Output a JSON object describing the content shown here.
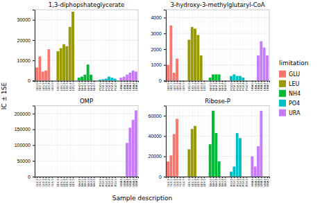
{
  "chart_data": [
    {
      "type": "bar",
      "title": "1,3-diphopshateglycerate",
      "categories": [
        "GLU\n0",
        "GLU\n1",
        "GLU\n2",
        "GLU\n3",
        "GLU\n4",
        "GLU\n5",
        "LEU\n0",
        "LEU\n1",
        "LEU\n2",
        "LEU\n3",
        "LEU\n4",
        "LEU\n5",
        "NH4\n0",
        "NH4\n1",
        "NH4\n2",
        "NH4\n3",
        "NH4\n4",
        "NH4\n5",
        "PO4\n0",
        "PO4\n1",
        "PO4\n2",
        "PO4\n3",
        "PO4\n4",
        "PO4\n5",
        "URA\n0",
        "URA\n1",
        "URA\n2",
        "URA\n3",
        "URA\n4",
        "URA\n5"
      ],
      "series": [
        {
          "name": "GLU",
          "color": "#F8766D",
          "values": [
            6500,
            12000,
            4500,
            5000,
            15500,
            0,
            null,
            null,
            null,
            null,
            null,
            null,
            null,
            null,
            null,
            null,
            null,
            null,
            null,
            null,
            null,
            null,
            null,
            null,
            null,
            null,
            null,
            null,
            null,
            null
          ]
        },
        {
          "name": "LEU",
          "color": "#999900",
          "values": [
            null,
            null,
            null,
            null,
            null,
            null,
            14500,
            16000,
            18000,
            17000,
            26500,
            34000,
            null,
            null,
            null,
            null,
            null,
            null,
            null,
            null,
            null,
            null,
            null,
            null,
            null,
            null,
            null,
            null,
            null,
            null
          ]
        },
        {
          "name": "NH4",
          "color": "#00BA38",
          "values": [
            null,
            null,
            null,
            null,
            null,
            null,
            null,
            null,
            null,
            null,
            null,
            null,
            1500,
            2000,
            3000,
            8000,
            3000,
            0,
            null,
            null,
            null,
            null,
            null,
            null,
            null,
            null,
            null,
            null,
            null,
            null
          ]
        },
        {
          "name": "PO4",
          "color": "#00BFC4",
          "values": [
            null,
            null,
            null,
            null,
            null,
            null,
            null,
            null,
            null,
            null,
            null,
            null,
            null,
            null,
            null,
            null,
            null,
            null,
            500,
            700,
            1000,
            2000,
            1500,
            1000,
            null,
            null,
            null,
            null,
            null,
            null
          ]
        },
        {
          "name": "URA",
          "color": "#C77CFF",
          "values": [
            null,
            null,
            null,
            null,
            null,
            null,
            null,
            null,
            null,
            null,
            null,
            null,
            null,
            null,
            null,
            null,
            null,
            null,
            null,
            null,
            null,
            null,
            null,
            null,
            1500,
            2000,
            3000,
            4000,
            5000,
            4500
          ]
        }
      ],
      "ylim": [
        0,
        35000
      ],
      "yticks": [
        0,
        10000,
        20000,
        30000
      ],
      "grid": true
    },
    {
      "type": "bar",
      "title": "3-hydroxy-3-methylglutaryl-CoA",
      "categories": [
        "GLU\n0",
        "GLU\n1",
        "GLU\n2",
        "GLU\n3",
        "GLU\n4",
        "GLU\n5",
        "LEU\n0",
        "LEU\n1",
        "LEU\n2",
        "LEU\n3",
        "LEU\n4",
        "LEU\n5",
        "NH4\n0",
        "NH4\n1",
        "NH4\n2",
        "NH4\n3",
        "NH4\n4",
        "NH4\n5",
        "PO4\n0",
        "PO4\n1",
        "PO4\n2",
        "PO4\n3",
        "PO4\n4",
        "PO4\n5",
        "URA\n0",
        "URA\n1",
        "URA\n2",
        "URA\n3",
        "URA\n4",
        "URA\n5"
      ],
      "series": [
        {
          "name": "GLU",
          "color": "#F8766D",
          "values": [
            1000,
            3500,
            500,
            1400,
            0,
            0,
            null,
            null,
            null,
            null,
            null,
            null,
            null,
            null,
            null,
            null,
            null,
            null,
            null,
            null,
            null,
            null,
            null,
            null,
            null,
            null,
            null,
            null,
            null,
            null
          ]
        },
        {
          "name": "LEU",
          "color": "#999900",
          "values": [
            null,
            null,
            null,
            null,
            null,
            null,
            2600,
            3400,
            3300,
            2900,
            1600,
            0,
            null,
            null,
            null,
            null,
            null,
            null,
            null,
            null,
            null,
            null,
            null,
            null,
            null,
            null,
            null,
            null,
            null,
            null
          ]
        },
        {
          "name": "NH4",
          "color": "#00BA38",
          "values": [
            null,
            null,
            null,
            null,
            null,
            null,
            null,
            null,
            null,
            null,
            null,
            null,
            200,
            400,
            400,
            400,
            0,
            0,
            null,
            null,
            null,
            null,
            null,
            null,
            null,
            null,
            null,
            null,
            null,
            null
          ]
        },
        {
          "name": "PO4",
          "color": "#00BFC4",
          "values": [
            null,
            null,
            null,
            null,
            null,
            null,
            null,
            null,
            null,
            null,
            null,
            null,
            null,
            null,
            null,
            null,
            null,
            null,
            300,
            400,
            300,
            300,
            200,
            0,
            null,
            null,
            null,
            null,
            null,
            null
          ]
        },
        {
          "name": "URA",
          "color": "#C77CFF",
          "values": [
            null,
            null,
            null,
            null,
            null,
            null,
            null,
            null,
            null,
            null,
            null,
            null,
            null,
            null,
            null,
            null,
            null,
            null,
            null,
            null,
            null,
            null,
            null,
            null,
            0,
            0,
            1600,
            2500,
            2100,
            1600
          ]
        }
      ],
      "ylim": [
        0,
        4500
      ],
      "yticks": [
        0,
        1000,
        2000,
        3000,
        4000
      ],
      "grid": true
    },
    {
      "type": "bar",
      "title": "OMP",
      "categories": [
        "GLU\n0",
        "GLU\n1",
        "GLU\n2",
        "GLU\n3",
        "GLU\n4",
        "GLU\n5",
        "LEU\n0",
        "LEU\n1",
        "LEU\n2",
        "LEU\n3",
        "LEU\n4",
        "LEU\n5",
        "NH4\n0",
        "NH4\n1",
        "NH4\n2",
        "NH4\n3",
        "NH4\n4",
        "NH4\n5",
        "PO4\n0",
        "PO4\n1",
        "PO4\n2",
        "PO4\n3",
        "PO4\n4",
        "PO4\n5",
        "URA\n0",
        "URA\n1",
        "URA\n2",
        "URA\n3",
        "URA\n4",
        "URA\n5"
      ],
      "series": [
        {
          "name": "GLU",
          "color": "#F8766D",
          "values": [
            0,
            0,
            0,
            0,
            0,
            0,
            null,
            null,
            null,
            null,
            null,
            null,
            null,
            null,
            null,
            null,
            null,
            null,
            null,
            null,
            null,
            null,
            null,
            null,
            null,
            null,
            null,
            null,
            null,
            null
          ]
        },
        {
          "name": "LEU",
          "color": "#999900",
          "values": [
            null,
            null,
            null,
            null,
            null,
            null,
            0,
            0,
            0,
            0,
            0,
            0,
            null,
            null,
            null,
            null,
            null,
            null,
            null,
            null,
            null,
            null,
            null,
            null,
            null,
            null,
            null,
            null,
            null,
            null
          ]
        },
        {
          "name": "NH4",
          "color": "#00BA38",
          "values": [
            null,
            null,
            null,
            null,
            null,
            null,
            null,
            null,
            null,
            null,
            null,
            null,
            0,
            200,
            0,
            0,
            0,
            0,
            null,
            null,
            null,
            null,
            null,
            null,
            null,
            null,
            null,
            null,
            null,
            null
          ]
        },
        {
          "name": "PO4",
          "color": "#00BFC4",
          "values": [
            null,
            null,
            null,
            null,
            null,
            null,
            null,
            null,
            null,
            null,
            null,
            null,
            null,
            null,
            null,
            null,
            null,
            null,
            0,
            200,
            0,
            0,
            0,
            0,
            null,
            null,
            null,
            null,
            null,
            null
          ]
        },
        {
          "name": "URA",
          "color": "#C77CFF",
          "values": [
            null,
            null,
            null,
            null,
            null,
            null,
            null,
            null,
            null,
            null,
            null,
            null,
            null,
            null,
            null,
            null,
            null,
            null,
            null,
            null,
            null,
            null,
            null,
            null,
            0,
            0,
            107000,
            155000,
            180000,
            210000
          ]
        }
      ],
      "ylim": [
        0,
        225000
      ],
      "yticks": [
        0,
        50000,
        100000,
        150000,
        200000
      ],
      "grid": true
    },
    {
      "type": "bar",
      "title": "Ribose-P",
      "categories": [
        "GLU\n0",
        "GLU\n1",
        "GLU\n2",
        "GLU\n3",
        "GLU\n4",
        "GLU\n5",
        "LEU\n0",
        "LEU\n1",
        "LEU\n2",
        "LEU\n3",
        "LEU\n4",
        "LEU\n5",
        "NH4\n0",
        "NH4\n1",
        "NH4\n2",
        "NH4\n3",
        "NH4\n4",
        "NH4\n5",
        "PO4\n0",
        "PO4\n1",
        "PO4\n2",
        "PO4\n3",
        "PO4\n4",
        "PO4\n5",
        "URA\n0",
        "URA\n1",
        "URA\n2",
        "URA\n3",
        "URA\n4",
        "URA\n5"
      ],
      "series": [
        {
          "name": "GLU",
          "color": "#F8766D",
          "values": [
            15000,
            21000,
            42000,
            57000,
            0,
            0,
            null,
            null,
            null,
            null,
            null,
            null,
            null,
            null,
            null,
            null,
            null,
            null,
            null,
            null,
            null,
            null,
            null,
            null,
            null,
            null,
            null,
            null,
            null,
            null
          ]
        },
        {
          "name": "LEU",
          "color": "#999900",
          "values": [
            null,
            null,
            null,
            null,
            null,
            null,
            27000,
            47000,
            50000,
            0,
            0,
            0,
            null,
            null,
            null,
            null,
            null,
            null,
            null,
            null,
            null,
            null,
            null,
            null,
            null,
            null,
            null,
            null,
            null,
            null
          ]
        },
        {
          "name": "NH4",
          "color": "#00BA38",
          "values": [
            null,
            null,
            null,
            null,
            null,
            null,
            null,
            null,
            null,
            null,
            null,
            null,
            32000,
            65000,
            43000,
            15000,
            0,
            0,
            null,
            null,
            null,
            null,
            null,
            null,
            null,
            null,
            null,
            null,
            null,
            null
          ]
        },
        {
          "name": "PO4",
          "color": "#00BFC4",
          "values": [
            null,
            null,
            null,
            null,
            null,
            null,
            null,
            null,
            null,
            null,
            null,
            null,
            null,
            null,
            null,
            null,
            null,
            null,
            5000,
            10000,
            43000,
            38000,
            0,
            0,
            null,
            null,
            null,
            null,
            null,
            null
          ]
        },
        {
          "name": "URA",
          "color": "#C77CFF",
          "values": [
            null,
            null,
            null,
            null,
            null,
            null,
            null,
            null,
            null,
            null,
            null,
            null,
            null,
            null,
            null,
            null,
            null,
            null,
            null,
            null,
            null,
            null,
            null,
            null,
            20000,
            10000,
            30000,
            65000,
            0,
            0
          ]
        }
      ],
      "ylim": [
        0,
        70000
      ],
      "yticks": [
        0,
        20000,
        40000,
        60000
      ],
      "grid": true
    }
  ],
  "xlabel": "Sample description",
  "ylabel": "IC ± 1SE",
  "legend_title": "limitation"
}
